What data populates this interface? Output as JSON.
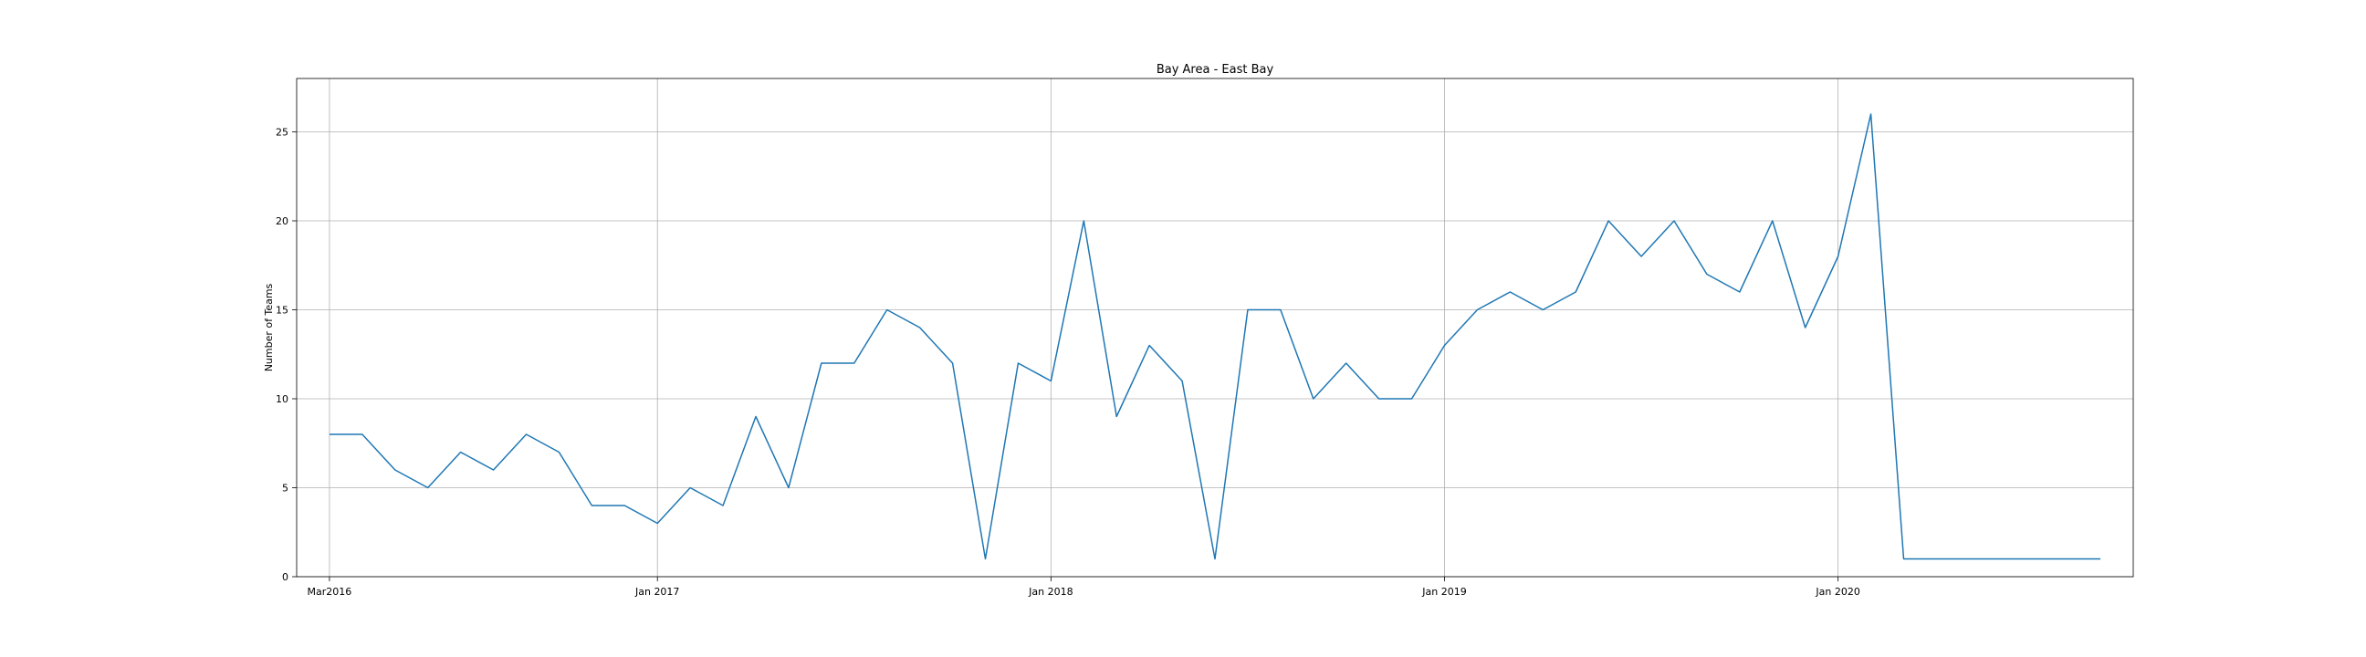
{
  "chart_data": {
    "type": "line",
    "title": "Bay Area - East Bay",
    "xlabel": "",
    "ylabel": "Number of Teams",
    "grid": true,
    "ylim": [
      0,
      28
    ],
    "yticks": [
      0,
      5,
      10,
      15,
      20,
      25
    ],
    "xlim": [
      "2016-02-01",
      "2020-10-01"
    ],
    "xticks": [
      {
        "date": "2016-03-01",
        "label": "Mar2016"
      },
      {
        "date": "2017-01-01",
        "label": "Jan 2017"
      },
      {
        "date": "2018-01-01",
        "label": "Jan 2018"
      },
      {
        "date": "2019-01-01",
        "label": "Jan 2019"
      },
      {
        "date": "2020-01-01",
        "label": "Jan 2020"
      }
    ],
    "series": [
      {
        "name": "",
        "color": "#1f77b4",
        "x": [
          "2016-03",
          "2016-04",
          "2016-05",
          "2016-06",
          "2016-07",
          "2016-08",
          "2016-09",
          "2016-10",
          "2016-11",
          "2016-12",
          "2017-01",
          "2017-02",
          "2017-03",
          "2017-04",
          "2017-05",
          "2017-06",
          "2017-07",
          "2017-08",
          "2017-09",
          "2017-10",
          "2017-11",
          "2017-12",
          "2018-01",
          "2018-02",
          "2018-03",
          "2018-04",
          "2018-05",
          "2018-06",
          "2018-07",
          "2018-08",
          "2018-09",
          "2018-10",
          "2018-11",
          "2018-12",
          "2019-01",
          "2019-02",
          "2019-03",
          "2019-04",
          "2019-05",
          "2019-06",
          "2019-07",
          "2019-08",
          "2019-09",
          "2019-10",
          "2019-11",
          "2019-12",
          "2020-01",
          "2020-02",
          "2020-03",
          "2020-04",
          "2020-05",
          "2020-06",
          "2020-07",
          "2020-08",
          "2020-09"
        ],
        "values": [
          8,
          8,
          6,
          5,
          7,
          6,
          8,
          7,
          4,
          4,
          3,
          5,
          4,
          9,
          5,
          12,
          12,
          15,
          14,
          12,
          1,
          12,
          11,
          20,
          9,
          13,
          11,
          1,
          15,
          15,
          10,
          12,
          10,
          10,
          13,
          15,
          16,
          15,
          16,
          20,
          18,
          20,
          17,
          16,
          20,
          14,
          18,
          26,
          1,
          1,
          1,
          1,
          1,
          1,
          1
        ]
      }
    ]
  }
}
